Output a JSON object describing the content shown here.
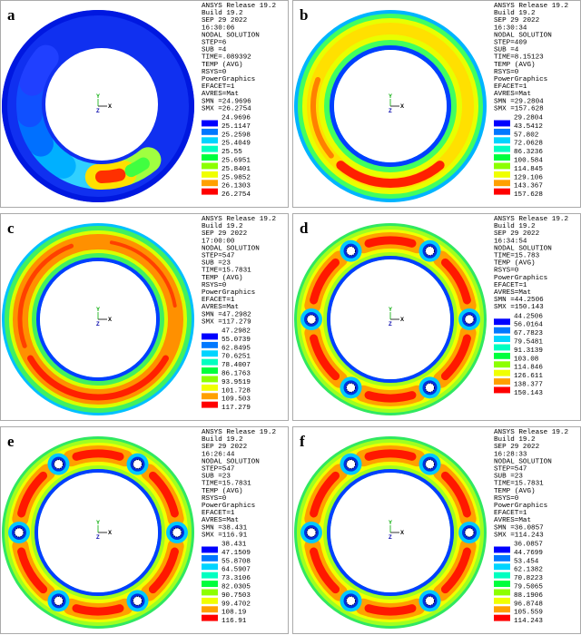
{
  "triad": [
    "Y",
    "X",
    "Z"
  ],
  "legend_colors": [
    "#0000ff",
    "#0078ff",
    "#00d4ff",
    "#00ffc0",
    "#00ff3c",
    "#8cff00",
    "#f0ff00",
    "#ffa000",
    "#ff0000"
  ],
  "panels": [
    {
      "label": "a",
      "info": [
        "ANSYS Release 19.2",
        "Build 19.2",
        "SEP 29 2022",
        "16:30:06",
        "NODAL SOLUTION",
        "STEP=6",
        "SUB =4",
        "TIME=.089392",
        "TEMP     (AVG)",
        "RSYS=0",
        "PowerGraphics",
        "EFACET=1",
        "AVRES=Mat",
        "SMN =24.9696",
        "SMX =26.2754"
      ],
      "legend": [
        "24.9696",
        "25.1147",
        "25.2598",
        "25.4049",
        "25.55",
        "25.6951",
        "25.8401",
        "25.9852",
        "26.1303",
        "26.2754"
      ]
    },
    {
      "label": "b",
      "info": [
        "ANSYS Release 19.2",
        "Build 19.2",
        "SEP 29 2022",
        "16:30:34",
        "NODAL SOLUTION",
        "STEP=409",
        "SUB =4",
        "TIME=8.15123",
        "TEMP     (AVG)",
        "RSYS=0",
        "PowerGraphics",
        "EFACET=1",
        "AVRES=Mat",
        "SMN =29.2804",
        "SMX =157.628"
      ],
      "legend": [
        "29.2804",
        "43.5412",
        "57.802",
        "72.0628",
        "86.3236",
        "100.584",
        "114.845",
        "129.106",
        "143.367",
        "157.628"
      ]
    },
    {
      "label": "c",
      "info": [
        "ANSYS Release 19.2",
        "Build 19.2",
        "SEP 29 2022",
        "17:00:00",
        "NODAL SOLUTION",
        "STEP=547",
        "SUB =23",
        "TIME=15.7831",
        "TEMP     (AVG)",
        "RSYS=0",
        "PowerGraphics",
        "EFACET=1",
        "AVRES=Mat",
        "SMN =47.2982",
        "SMX =117.279"
      ],
      "legend": [
        "47.2982",
        "55.0739",
        "62.8495",
        "70.6251",
        "78.4007",
        "86.1763",
        "93.9519",
        "101.728",
        "109.503",
        "117.279"
      ]
    },
    {
      "label": "d",
      "info": [
        "ANSYS Release 19.2",
        "Build 19.2",
        "SEP 29 2022",
        "16:34:54",
        "NODAL SOLUTION",
        "TIME=15.783",
        "TEMP     (AVG)",
        "RSYS=0",
        "PowerGraphics",
        "EFACET=1",
        "AVRES=Mat",
        "SMN =44.2506",
        "SMX =150.143"
      ],
      "legend": [
        "44.2506",
        "56.0164",
        "67.7823",
        "79.5481",
        "91.3139",
        "103.08",
        "114.846",
        "126.611",
        "138.377",
        "150.143"
      ]
    },
    {
      "label": "e",
      "info": [
        "ANSYS Release 19.2",
        "Build 19.2",
        "SEP 29 2022",
        "16:26:44",
        "NODAL SOLUTION",
        "STEP=547",
        "SUB =23",
        "TIME=15.7831",
        "TEMP     (AVG)",
        "RSYS=0",
        "PowerGraphics",
        "EFACET=1",
        "AVRES=Mat",
        "SMN =38.431",
        "SMX =116.91"
      ],
      "legend": [
        "38.431",
        "47.1509",
        "55.8708",
        "64.5907",
        "73.3106",
        "82.0305",
        "90.7503",
        "99.4702",
        "108.19",
        "116.91"
      ]
    },
    {
      "label": "f",
      "info": [
        "ANSYS Release 19.2",
        "Build 19.2",
        "SEP 29 2022",
        "16:28:33",
        "NODAL SOLUTION",
        "STEP=547",
        "SUB =23",
        "TIME=15.7831",
        "TEMP     (AVG)",
        "RSYS=0",
        "PowerGraphics",
        "EFACET=1",
        "AVRES=Mat",
        "SMN =36.0857",
        "SMX =114.243"
      ],
      "legend": [
        "36.0857",
        "44.7699",
        "53.454",
        "62.1382",
        "70.8223",
        "79.5065",
        "88.1906",
        "96.8748",
        "105.559",
        "114.243"
      ]
    }
  ]
}
